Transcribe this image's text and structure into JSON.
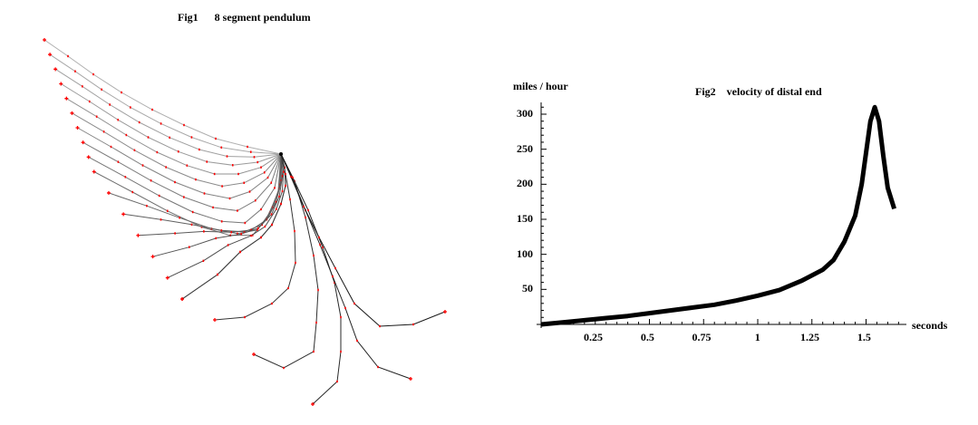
{
  "fig1": {
    "title": "Fig1      8 segment pendulum",
    "pivot": [
      310,
      170
    ],
    "segment_count": 8,
    "marker_color": "#ff0000"
  },
  "fig2": {
    "title": "Fig2    velocity of distal end",
    "ylabel": "miles / hour",
    "xlabel": "seconds",
    "line_color": "#000000"
  },
  "chart_data": [
    {
      "type": "line",
      "title": "Fig1 8 segment pendulum",
      "description": "Stroboscopic overlay of an 8-segment chain pendulum swinging from horizontal; each frame is a polyline of 8 segments with red joint markers, frames drawn from light gray (early) to black (late).",
      "frames": 22,
      "segments_per_frame": 8
    },
    {
      "type": "line",
      "title": "Fig2 velocity of distal end",
      "xlabel": "seconds",
      "ylabel": "miles / hour",
      "xlim": [
        0,
        1.65
      ],
      "ylim": [
        0,
        315
      ],
      "xticks": [
        0.25,
        0.5,
        0.75,
        1,
        1.25,
        1.5
      ],
      "yticks": [
        50,
        100,
        150,
        200,
        250,
        300
      ],
      "grid": false,
      "series": [
        {
          "name": "velocity of distal end",
          "x": [
            0,
            0.1,
            0.2,
            0.3,
            0.4,
            0.5,
            0.6,
            0.7,
            0.8,
            0.9,
            1.0,
            1.1,
            1.2,
            1.3,
            1.35,
            1.4,
            1.45,
            1.48,
            1.5,
            1.52,
            1.54,
            1.56,
            1.58,
            1.6,
            1.63
          ],
          "values": [
            0,
            3,
            6,
            9,
            12,
            16,
            20,
            24,
            28,
            34,
            41,
            49,
            62,
            78,
            92,
            118,
            155,
            200,
            245,
            290,
            310,
            290,
            240,
            195,
            165
          ]
        }
      ]
    }
  ],
  "fig2_axis": {
    "yticks": [
      "50",
      "100",
      "150",
      "200",
      "250",
      "300"
    ],
    "xticks": [
      "0.25",
      "0.5",
      "0.75",
      "1",
      "1.25",
      "1.5"
    ]
  }
}
